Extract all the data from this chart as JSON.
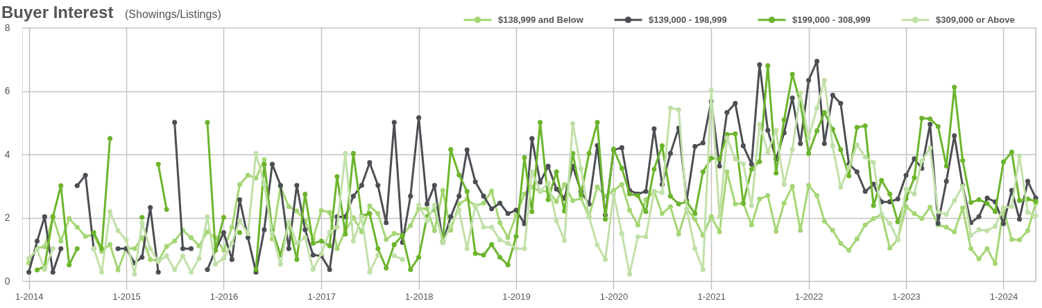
{
  "chart_data": {
    "type": "line",
    "title": "Buyer Interest",
    "subtitle": "(Showings/Listings)",
    "x": [
      "2014-01",
      "2014-02",
      "2014-03",
      "2014-04",
      "2014-05",
      "2014-06",
      "2014-07",
      "2014-08",
      "2014-09",
      "2014-10",
      "2014-11",
      "2014-12",
      "2015-01",
      "2015-02",
      "2015-03",
      "2015-04",
      "2015-05",
      "2015-06",
      "2015-07",
      "2015-08",
      "2015-09",
      "2015-10",
      "2015-11",
      "2015-12",
      "2016-01",
      "2016-02",
      "2016-03",
      "2016-04",
      "2016-05",
      "2016-06",
      "2016-07",
      "2016-08",
      "2016-09",
      "2016-10",
      "2016-11",
      "2016-12",
      "2017-01",
      "2017-02",
      "2017-03",
      "2017-04",
      "2017-05",
      "2017-06",
      "2017-07",
      "2017-08",
      "2017-09",
      "2017-10",
      "2017-11",
      "2017-12",
      "2018-01",
      "2018-02",
      "2018-03",
      "2018-04",
      "2018-05",
      "2018-06",
      "2018-07",
      "2018-08",
      "2018-09",
      "2018-10",
      "2018-11",
      "2018-12",
      "2019-01",
      "2019-02",
      "2019-03",
      "2019-04",
      "2019-05",
      "2019-06",
      "2019-07",
      "2019-08",
      "2019-09",
      "2019-10",
      "2019-11",
      "2019-12",
      "2020-01",
      "2020-02",
      "2020-03",
      "2020-04",
      "2020-05",
      "2020-06",
      "2020-07",
      "2020-08",
      "2020-09",
      "2020-10",
      "2020-11",
      "2020-12",
      "2021-01",
      "2021-02",
      "2021-03",
      "2021-04",
      "2021-05",
      "2021-06",
      "2021-07",
      "2021-08",
      "2021-09",
      "2021-10",
      "2021-11",
      "2021-12",
      "2022-01",
      "2022-02",
      "2022-03",
      "2022-04",
      "2022-05",
      "2022-06",
      "2022-07",
      "2022-08",
      "2022-09",
      "2022-10",
      "2022-11",
      "2022-12",
      "2023-01",
      "2023-02",
      "2023-03",
      "2023-04",
      "2023-05",
      "2023-06",
      "2023-07",
      "2023-08",
      "2023-09",
      "2023-10",
      "2023-11",
      "2023-12",
      "2024-01",
      "2024-02",
      "2024-03",
      "2024-04",
      "2024-05"
    ],
    "series": [
      {
        "name": "$138,999 and Below",
        "color": "#a5d674",
        "values": [
          0.57,
          1.04,
          1.08,
          2.03,
          1.26,
          1.97,
          1.7,
          1.41,
          1.46,
          0.93,
          1.15,
          0.35,
          1.04,
          1.02,
          1.37,
          0.68,
          0.64,
          1.09,
          1.26,
          1.6,
          1.37,
          1.11,
          1.55,
          1.37,
          0.97,
          1.7,
          3.05,
          3.34,
          3.25,
          3.83,
          1.33,
          2.97,
          2.35,
          2.21,
          1.9,
          1.33,
          2.23,
          2.17,
          1.02,
          1.59,
          2.0,
          1.55,
          2.37,
          2.13,
          1.31,
          1.5,
          1.46,
          1.75,
          2.3,
          2.28,
          1.59,
          2.86,
          1.6,
          2.43,
          2.59,
          2.37,
          2.46,
          2.84,
          1.84,
          1.37,
          2.08,
          2.75,
          2.97,
          2.83,
          2.84,
          2.51,
          3.05,
          2.54,
          2.61,
          2.03,
          2.97,
          2.68,
          2.86,
          3.05,
          2.24,
          1.77,
          2.57,
          2.83,
          2.13,
          2.35,
          1.48,
          2.28,
          1.95,
          1.44,
          2.03,
          1.55,
          3.45,
          2.43,
          2.46,
          1.77,
          2.59,
          2.7,
          1.57,
          2.46,
          2.99,
          1.6,
          3.02,
          2.7,
          1.89,
          1.6,
          1.19,
          0.97,
          1.33,
          1.77,
          1.97,
          2.1,
          1.04,
          1.3,
          2.35,
          2.13,
          1.97,
          2.33,
          1.77,
          1.7,
          1.55,
          2.31,
          1.02,
          0.7,
          1.02,
          0.55,
          2.28,
          1.31,
          1.3,
          1.59,
          2.46
        ]
      },
      {
        "name": "$139,000 - 198,999",
        "color": "#4b4e52",
        "values": [
          0.28,
          1.26,
          2.03,
          0.28,
          1.02,
          null,
          3.01,
          3.34,
          1.02,
          null,
          null,
          1.02,
          1.02,
          0.57,
          0.75,
          2.32,
          0.28,
          null,
          5.01,
          1.02,
          1.02,
          null,
          0.36,
          0.97,
          1.53,
          0.68,
          2.57,
          1.37,
          0.28,
          1.62,
          3.69,
          3.02,
          1.02,
          3.02,
          1.62,
          0.82,
          0.8,
          0.36,
          2.03,
          2.03,
          2.68,
          3.02,
          3.74,
          3.02,
          1.84,
          5.01,
          1.22,
          2.68,
          5.16,
          2.43,
          3.02,
          1.22,
          2.03,
          2.68,
          4.14,
          3.13,
          2.68,
          2.28,
          2.46,
          2.13,
          2.24,
          1.81,
          4.5,
          3.12,
          3.63,
          2.9,
          2.61,
          3.63,
          2.83,
          2.43,
          4.28,
          2.08,
          4.14,
          4.21,
          2.86,
          2.75,
          2.83,
          4.81,
          3.05,
          4.03,
          4.83,
          2.54,
          4.25,
          4.36,
          5.67,
          3.63,
          5.32,
          5.61,
          4.27,
          3.69,
          6.83,
          4.76,
          3.85,
          4.68,
          5.78,
          4.34,
          6.34,
          6.94,
          4.34,
          5.87,
          5.61,
          3.69,
          3.45,
          2.83,
          3.06,
          2.5,
          2.5,
          2.59,
          3.34,
          3.86,
          3.56,
          4.95,
          1.82,
          3.15,
          4.59,
          3.01,
          1.84,
          2.03,
          2.62,
          2.5,
          1.81,
          2.86,
          1.95,
          3.15,
          2.62
        ]
      },
      {
        "name": "$199,000 - 308,999",
        "color": "#6cb52d",
        "values": [
          null,
          0.35,
          0.46,
          2.03,
          3.01,
          0.51,
          1.02,
          null,
          1.53,
          1.02,
          4.5,
          null,
          null,
          null,
          2.01,
          null,
          3.69,
          2.26,
          null,
          null,
          null,
          null,
          5.01,
          0.97,
          2.01,
          null,
          1.53,
          null,
          0.36,
          3.69,
          1.6,
          0.82,
          1.82,
          0.68,
          2.74,
          1.19,
          1.26,
          1.11,
          3.3,
          1.48,
          4.03,
          2.06,
          2.13,
          1.02,
          0.41,
          1.15,
          1.44,
          0.36,
          0.75,
          2.03,
          2.28,
          1.26,
          4.15,
          3.35,
          2.83,
          0.87,
          0.82,
          1.15,
          0.75,
          0.51,
          1.41,
          3.9,
          2.19,
          5.01,
          2.57,
          3.45,
          2.21,
          4.03,
          2.72,
          4.03,
          5.01,
          1.95,
          4.17,
          3.56,
          2.75,
          2.7,
          2.19,
          3.53,
          4.27,
          2.68,
          2.43,
          2.5,
          2.13,
          3.45,
          3.88,
          3.85,
          4.63,
          4.65,
          2.45,
          3.53,
          3.77,
          6.8,
          3.41,
          5.09,
          6.53,
          5.63,
          4.03,
          4.74,
          5.32,
          4.79,
          4.15,
          3.32,
          4.85,
          4.9,
          2.38,
          3.18,
          2.75,
          1.87,
          2.6,
          3.26,
          5.14,
          5.12,
          4.88,
          3.63,
          6.12,
          3.81,
          2.48,
          2.57,
          2.45,
          2.19,
          3.76,
          4.07,
          2.54,
          2.59,
          2.52
        ]
      },
      {
        "name": "$309,000 or Above",
        "color": "#c1e0a8",
        "values": [
          0.71,
          1.0,
          0.36,
          1.02,
          null,
          null,
          null,
          null,
          1.02,
          0.28,
          2.19,
          1.59,
          1.3,
          0.22,
          1.84,
          1.02,
          0.62,
          0.79,
          0.36,
          0.79,
          0.28,
          0.71,
          2.03,
          0.53,
          0.71,
          1.2,
          1.9,
          1.5,
          4.03,
          3.05,
          1.5,
          0.53,
          1.87,
          1.19,
          1.37,
          0.36,
          0.86,
          1.55,
          1.7,
          4.03,
          1.26,
          2.03,
          0.28,
          0.82,
          null,
          0.8,
          0.68,
          null,
          2.4,
          1.9,
          2.4,
          1.2,
          1.77,
          2.24,
          1.02,
          2.39,
          1.7,
          1.7,
          1.3,
          1.19,
          1.02,
          1.02,
          3.45,
          2.83,
          3.1,
          1.9,
          1.28,
          4.97,
          3.55,
          2.03,
          1.14,
          0.68,
          2.75,
          1.5,
          0.22,
          1.4,
          1.4,
          2.83,
          2.79,
          5.46,
          5.41,
          2.26,
          1.02,
          0.36,
          6.02,
          2.03,
          4.52,
          3.85,
          3.7,
          2.38,
          4.95,
          4.07,
          4.76,
          3.05,
          4.15,
          5.94,
          4.52,
          5.46,
          6.34,
          4.27,
          2.96,
          3.59,
          4.3,
          3.92,
          3.74,
          2.11,
          1.82,
          1.3,
          2.9,
          2.75,
          3.79,
          4.2,
          2.19,
          2.1,
          2.54,
          2.99,
          1.44,
          1.62,
          1.59,
          1.73,
          2.31,
          2.35,
          3.95,
          2.17,
          2.06
        ]
      }
    ],
    "xlim": [
      "2013-12-07",
      "2024-05-01"
    ],
    "xticks": [
      {
        "value": "2014-01",
        "label": "1-2014"
      },
      {
        "value": "2015-01",
        "label": "1-2015"
      },
      {
        "value": "2016-01",
        "label": "1-2016"
      },
      {
        "value": "2017-01",
        "label": "1-2017"
      },
      {
        "value": "2018-01",
        "label": "1-2018"
      },
      {
        "value": "2019-01",
        "label": "1-2019"
      },
      {
        "value": "2020-01",
        "label": "1-2020"
      },
      {
        "value": "2021-01",
        "label": "1-2021"
      },
      {
        "value": "2022-01",
        "label": "1-2022"
      },
      {
        "value": "2023-01",
        "label": "1-2023"
      },
      {
        "value": "2024-01",
        "label": "1-2024"
      }
    ],
    "ylim": [
      0,
      8
    ],
    "yticks": [
      0,
      2,
      4,
      6,
      8
    ],
    "grid": true,
    "legend": "top right",
    "marker": "circle",
    "line_style": "solid"
  }
}
